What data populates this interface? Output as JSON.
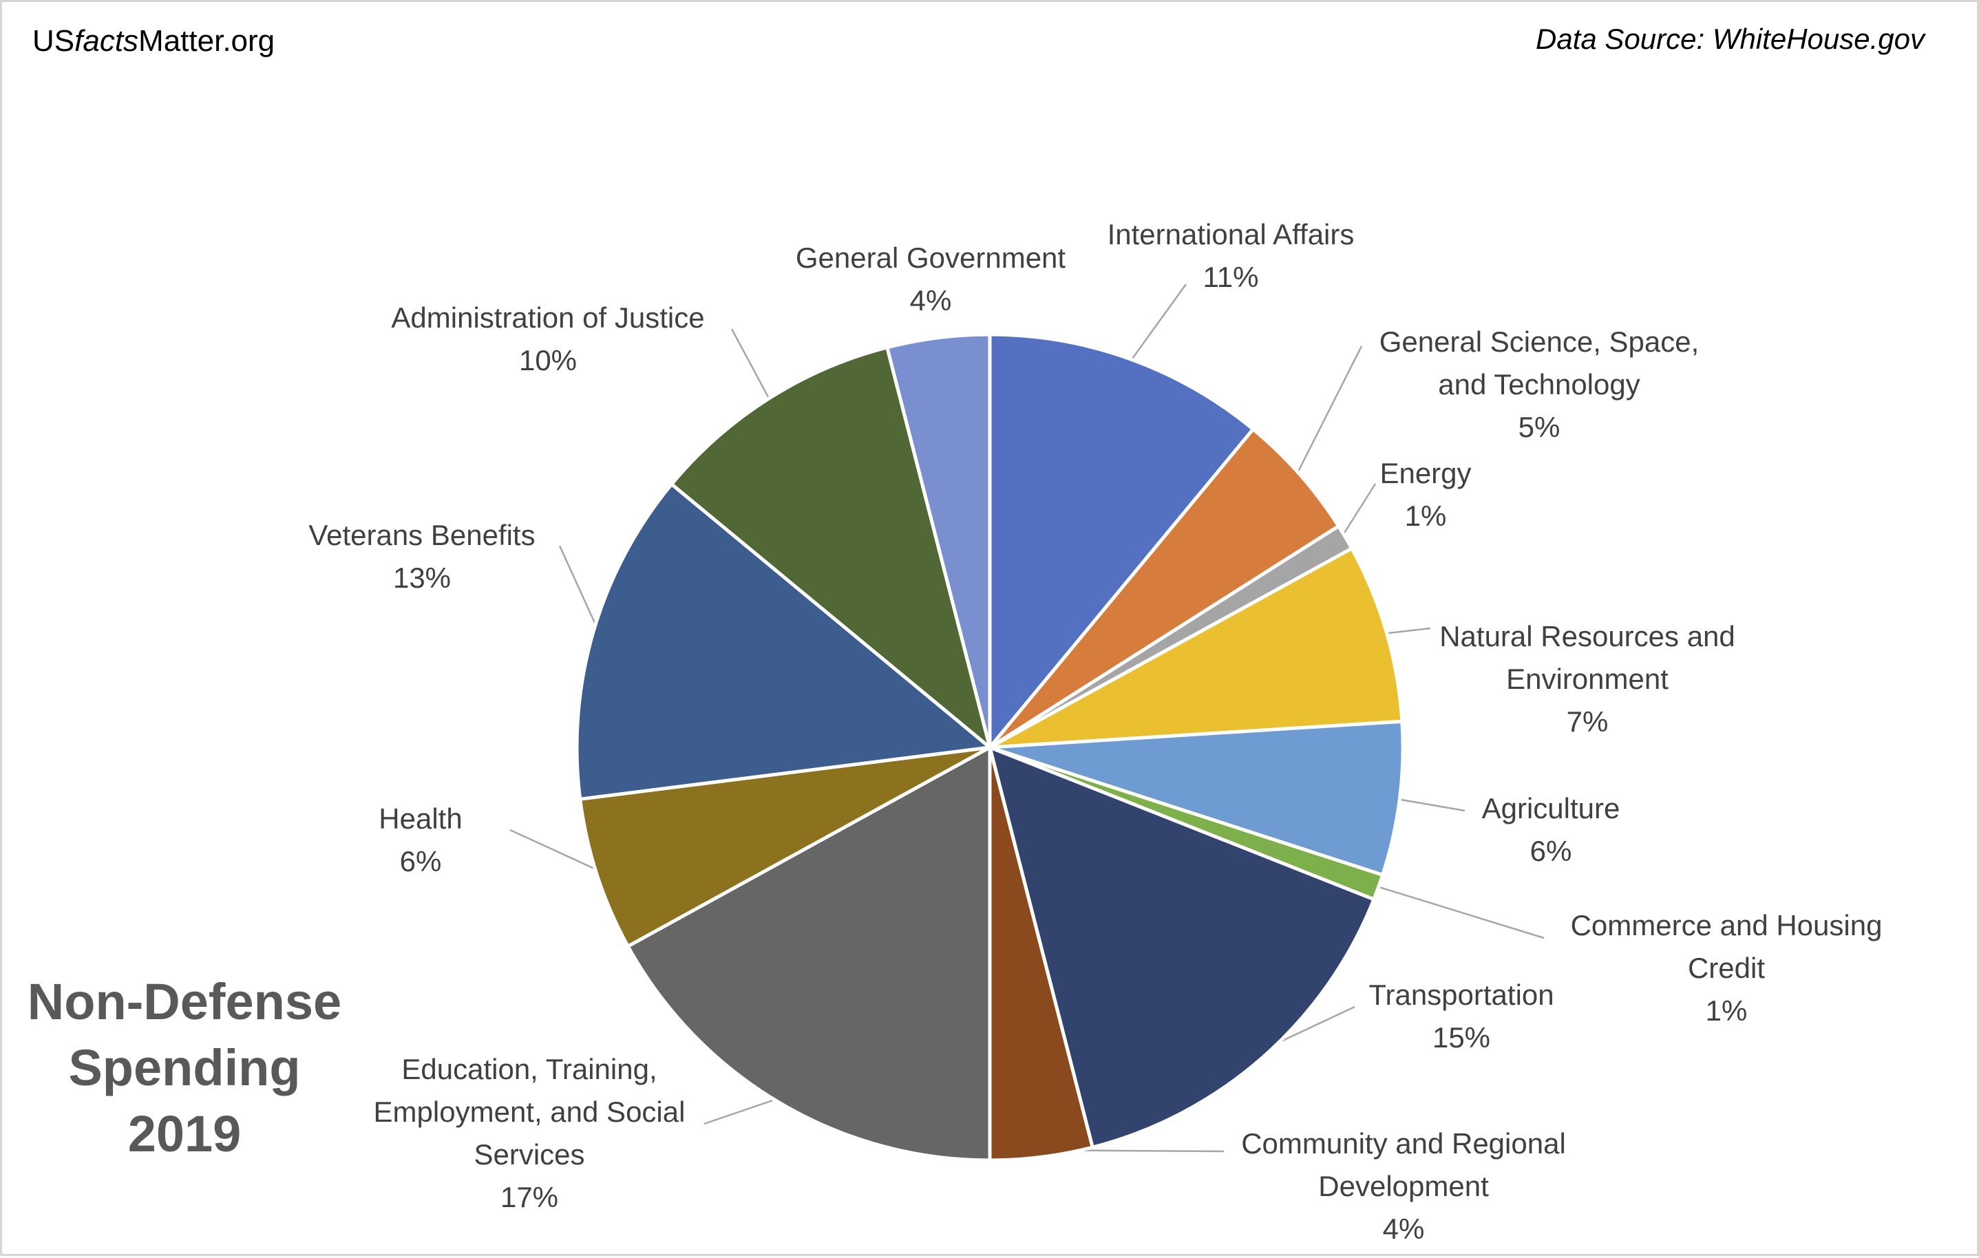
{
  "header": {
    "site_prefix": "US",
    "site_italic": "facts",
    "site_suffix": "Matter.org",
    "source": "Data Source: WhiteHouse.gov"
  },
  "title_lines": [
    "Non-Defense",
    "Spending",
    "2019"
  ],
  "chart_data": {
    "type": "pie",
    "title": "Non-Defense Spending 2019",
    "start_angle_deg": 0,
    "direction": "clockwise",
    "slices": [
      {
        "label": "International Affairs",
        "lines": [
          "International Affairs"
        ],
        "value": 11,
        "display": "11%",
        "color": "#5470C0"
      },
      {
        "label": "General Science, Space, and Technology",
        "lines": [
          "General Science, Space,",
          "and Technology"
        ],
        "value": 5,
        "display": "5%",
        "color": "#D67D3E"
      },
      {
        "label": "Energy",
        "lines": [
          "Energy"
        ],
        "value": 1,
        "display": "1%",
        "color": "#A5A5A5"
      },
      {
        "label": "Natural Resources and Environment",
        "lines": [
          "Natural Resources and",
          "Environment"
        ],
        "value": 7,
        "display": "7%",
        "color": "#EBC030"
      },
      {
        "label": "Agriculture",
        "lines": [
          "Agriculture"
        ],
        "value": 6,
        "display": "6%",
        "color": "#6F9BD3"
      },
      {
        "label": "Commerce and Housing Credit",
        "lines": [
          "Commerce and Housing",
          "Credit"
        ],
        "value": 1,
        "display": "1%",
        "color": "#7DAF4A"
      },
      {
        "label": "Transportation",
        "lines": [
          "Transportation"
        ],
        "value": 15,
        "display": "15%",
        "color": "#32436E"
      },
      {
        "label": "Community and Regional Development",
        "lines": [
          "Community and Regional",
          "Development"
        ],
        "value": 4,
        "display": "4%",
        "color": "#8A4A1E"
      },
      {
        "label": "Education, Training, Employment, and Social Services",
        "lines": [
          "Education, Training,",
          "Employment, and Social",
          "Services"
        ],
        "value": 17,
        "display": "17%",
        "color": "#666666"
      },
      {
        "label": "Health",
        "lines": [
          "Health"
        ],
        "value": 6,
        "display": "6%",
        "color": "#8C721E"
      },
      {
        "label": "Veterans Benefits",
        "lines": [
          "Veterans Benefits"
        ],
        "value": 13,
        "display": "13%",
        "color": "#3E5D8F"
      },
      {
        "label": "Administration of Justice",
        "lines": [
          "Administration of Justice"
        ],
        "value": 10,
        "display": "10%",
        "color": "#516836"
      },
      {
        "label": "General Government",
        "lines": [
          "General Government"
        ],
        "value": 4,
        "display": "4%",
        "color": "#7A8FD0"
      }
    ]
  }
}
